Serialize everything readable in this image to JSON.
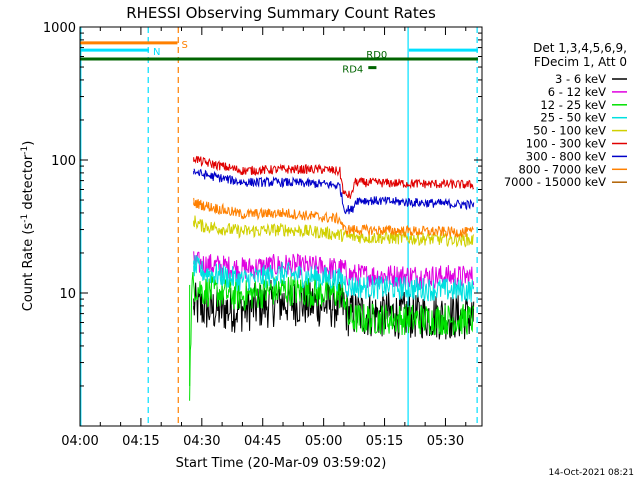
{
  "chart_data": {
    "type": "line",
    "title": "RHESSI Observing Summary Count Rates",
    "xlabel": "Start Time (20-Mar-09 03:59:02)",
    "ylabel_prefix": "Count Rate (s",
    "ylabel_sup1": "-1",
    "ylabel_mid": " detector",
    "ylabel_sup2": "-1",
    "ylabel_suffix": ")",
    "x_unit": "minutes after 04:00 UT",
    "xlim": [
      0,
      99
    ],
    "ylim": [
      1,
      1000
    ],
    "yscale": "log",
    "x_ticks": [
      {
        "value": 0,
        "label": "04:00"
      },
      {
        "value": 15,
        "label": "04:15"
      },
      {
        "value": 30,
        "label": "04:30"
      },
      {
        "value": 45,
        "label": "04:45"
      },
      {
        "value": 60,
        "label": "05:00"
      },
      {
        "value": 75,
        "label": "05:15"
      },
      {
        "value": 90,
        "label": "05:30"
      }
    ],
    "y_ticks": [
      {
        "value": 10,
        "label": "10"
      },
      {
        "value": 100,
        "label": "100"
      },
      {
        "value": 1000,
        "label": "1000"
      }
    ],
    "legend_position": "right",
    "legend_header": [
      "Det 1,3,4,5,6,9,",
      "FDecim 1, Att 0"
    ],
    "series": [
      {
        "name": "3 - 6 keV",
        "color": "#000000",
        "noise": 0.18,
        "start": 28,
        "points": [
          [
            28,
            8.0
          ],
          [
            32,
            7.5
          ],
          [
            40,
            7.6
          ],
          [
            50,
            8.6
          ],
          [
            60,
            8.2
          ],
          [
            65,
            8.0
          ],
          [
            66,
            7.0
          ],
          [
            97,
            6.6
          ]
        ]
      },
      {
        "name": "6 - 12 keV",
        "color": "#e000e0",
        "noise": 0.09,
        "start": 28,
        "points": [
          [
            28,
            17
          ],
          [
            30,
            16.5
          ],
          [
            40,
            15.2
          ],
          [
            50,
            16.2
          ],
          [
            60,
            15.5
          ],
          [
            65,
            15.0
          ],
          [
            66,
            13.6
          ],
          [
            97,
            13.2
          ]
        ]
      },
      {
        "name": "12 - 25 keV",
        "color": "#00e000",
        "noise": 0.12,
        "start": 27,
        "points": [
          [
            27,
            2.0
          ],
          [
            27.6,
            11.5
          ],
          [
            30,
            10.5
          ],
          [
            40,
            9.5
          ],
          [
            50,
            10.6
          ],
          [
            60,
            10.0
          ],
          [
            65,
            9.8
          ],
          [
            66,
            6.4
          ],
          [
            97,
            6.3
          ]
        ]
      },
      {
        "name": "25 - 50 keV",
        "color": "#00e0e0",
        "noise": 0.09,
        "start": 28,
        "points": [
          [
            28,
            16
          ],
          [
            30,
            14.5
          ],
          [
            40,
            12.5
          ],
          [
            50,
            14.0
          ],
          [
            60,
            13.0
          ],
          [
            65,
            12.5
          ],
          [
            66,
            11.2
          ],
          [
            97,
            10.4
          ]
        ]
      },
      {
        "name": "50 - 100 keV",
        "color": "#d0d000",
        "noise": 0.05,
        "start": 28,
        "points": [
          [
            28,
            35
          ],
          [
            30,
            32
          ],
          [
            40,
            29
          ],
          [
            50,
            30
          ],
          [
            60,
            28.5
          ],
          [
            65,
            27
          ],
          [
            66,
            26.5
          ],
          [
            97,
            25
          ]
        ]
      },
      {
        "name": "100 - 300 keV",
        "color": "#e00000",
        "noise": 0.035,
        "start": 28,
        "points": [
          [
            28,
            105
          ],
          [
            30,
            97
          ],
          [
            40,
            83
          ],
          [
            50,
            85
          ],
          [
            60,
            85
          ],
          [
            64,
            82
          ],
          [
            65,
            55
          ],
          [
            67,
            54
          ],
          [
            67.5,
            68
          ],
          [
            97,
            65
          ]
        ]
      },
      {
        "name": "300 - 800 keV",
        "color": "#0000c8",
        "noise": 0.035,
        "start": 28,
        "points": [
          [
            28,
            83
          ],
          [
            30,
            78
          ],
          [
            40,
            68
          ],
          [
            50,
            68
          ],
          [
            60,
            66
          ],
          [
            64,
            64
          ],
          [
            65,
            43
          ],
          [
            67,
            42
          ],
          [
            68,
            50
          ],
          [
            97,
            46
          ]
        ]
      },
      {
        "name": "800 - 7000 keV",
        "color": "#ff8000",
        "noise": 0.04,
        "start": 28,
        "points": [
          [
            28,
            48
          ],
          [
            30,
            46
          ],
          [
            40,
            39
          ],
          [
            50,
            40
          ],
          [
            60,
            37
          ],
          [
            64,
            36
          ],
          [
            65,
            30
          ],
          [
            97,
            28.5
          ]
        ]
      },
      {
        "name": "7000 - 15000 keV",
        "color": "#b06000",
        "noise": 0,
        "start": 28,
        "points": []
      }
    ],
    "flag_bars": [
      {
        "label": "S",
        "color": "#ff8000",
        "x0": 0,
        "x1": 24,
        "y": 760
      },
      {
        "label": "N",
        "color": "#00e0ff",
        "x0": 0,
        "x1": 17,
        "y": 670
      },
      {
        "label": "",
        "color": "#00e0ff",
        "x0": 81,
        "x1": 98,
        "y": 670
      },
      {
        "label": "RD0",
        "color": "#006400",
        "x0": 0,
        "x1": 98,
        "y": 575
      },
      {
        "label": "RD4",
        "color": "#006400",
        "x0": 71,
        "x1": 73,
        "y": 495
      }
    ],
    "vertical_lines": [
      {
        "x": 0.2,
        "color": "#00e0ff",
        "style": "solid"
      },
      {
        "x": 16.8,
        "color": "#00e0ff",
        "style": "dashed"
      },
      {
        "x": 24.2,
        "color": "#ff8000",
        "style": "dashed"
      },
      {
        "x": 80.8,
        "color": "#00e0ff",
        "style": "solid"
      },
      {
        "x": 97.8,
        "color": "#00e0ff",
        "style": "dashed"
      }
    ]
  },
  "footer_timestamp": "14-Oct-2021 08:21"
}
